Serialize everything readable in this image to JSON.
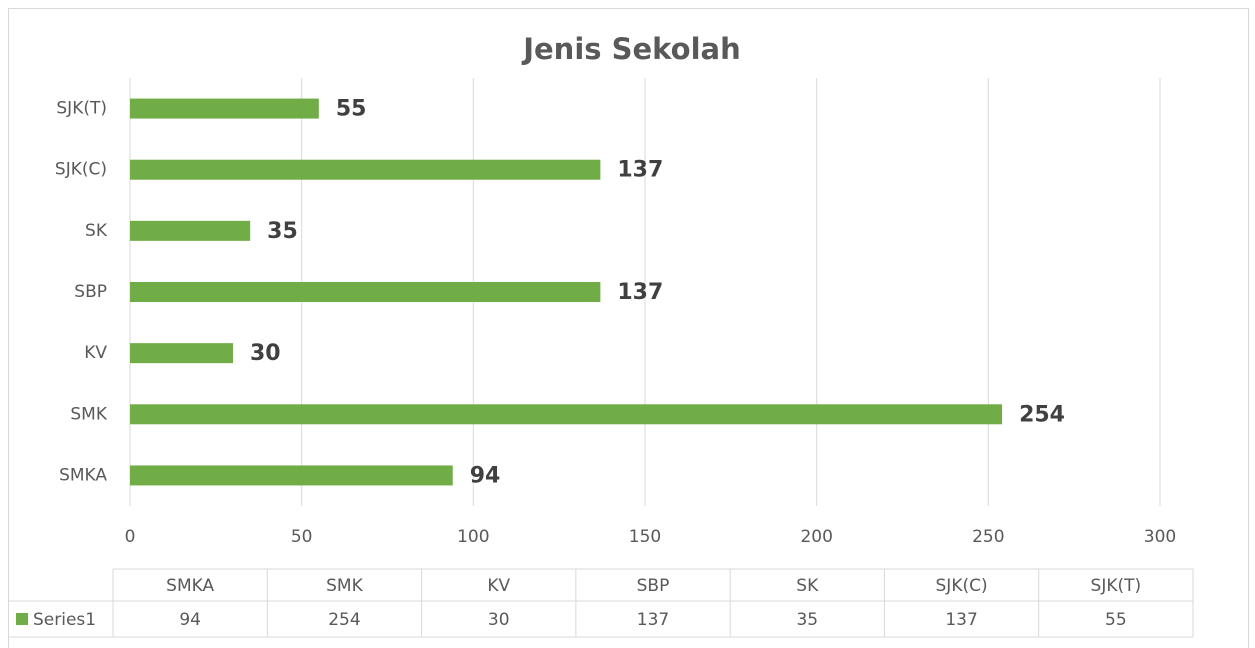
{
  "chart_data": {
    "type": "bar",
    "orientation": "horizontal",
    "title": "Jenis Sekolah",
    "categories": [
      "SMKA",
      "SMK",
      "KV",
      "SBP",
      "SK",
      "SJK(C)",
      "SJK(T)"
    ],
    "series": [
      {
        "name": "Series1",
        "color": "#70ad47",
        "values": [
          94,
          254,
          30,
          137,
          35,
          137,
          55
        ]
      }
    ],
    "xlim": [
      0,
      300
    ],
    "xticks": [
      0,
      50,
      100,
      150,
      200,
      250,
      300
    ],
    "grid": true
  }
}
